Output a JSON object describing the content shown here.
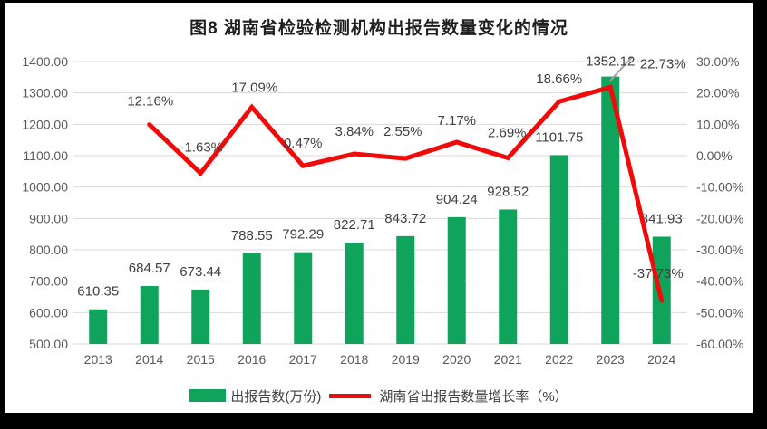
{
  "title": "图8  湖南省检验检测机构出报告数量变化的情况",
  "chart_data": {
    "type": "combo-bar-line",
    "title": "图8  湖南省检验检测机构出报告数量变化的情况",
    "categories": [
      "2013",
      "2014",
      "2015",
      "2016",
      "2017",
      "2018",
      "2019",
      "2020",
      "2021",
      "2022",
      "2023",
      "2024"
    ],
    "series": [
      {
        "name": "出报告数(万份)",
        "type": "bar",
        "axis": "left",
        "color": "#10A35C",
        "values": [
          610.35,
          684.57,
          673.44,
          788.55,
          792.29,
          822.71,
          843.72,
          904.24,
          928.52,
          1101.75,
          1352.12,
          841.93
        ],
        "labels": [
          "610.35",
          "684.57",
          "673.44",
          "788.55",
          "792.29",
          "822.71",
          "843.72",
          "904.24",
          "928.52",
          "1101.75",
          "1352.12",
          "841.93"
        ]
      },
      {
        "name": "湖南省出报告数量增长率（%）",
        "type": "line",
        "axis": "right",
        "color": "#F00A0A",
        "values": [
          null,
          12.16,
          -1.63,
          17.09,
          0.47,
          3.84,
          2.55,
          7.17,
          2.69,
          18.66,
          22.73,
          -37.73
        ],
        "labels": [
          null,
          "12.16%",
          "-1.63%",
          "17.09%",
          "0.47%",
          "3.84%",
          "2.55%",
          "7.17%",
          "2.69%",
          "18.66%",
          "22.73%",
          "-37.73%"
        ]
      }
    ],
    "left_axis": {
      "min": 500,
      "max": 1400,
      "step": 100,
      "decimals": 2,
      "suffix": "",
      "ticks": [
        "1400.00",
        "1300.00",
        "1200.00",
        "1100.00",
        "1000.00",
        "900.00",
        "800.00",
        "700.00",
        "600.00",
        "500.00"
      ]
    },
    "right_axis": {
      "min": -50,
      "max": 30,
      "step": 10,
      "decimals": 2,
      "suffix": "%",
      "ticks": [
        "30.00%",
        "20.00%",
        "10.00%",
        "0.00%",
        "-10.00%",
        "-20.00%",
        "-30.00%",
        "-40.00%",
        "-50.00%"
      ]
    },
    "grid": true,
    "legend_position": "bottom",
    "colors": {
      "grid": "#D9D9D9",
      "axis_text": "#595959",
      "data_label": "#404040",
      "leader_line": "#A0A0A0",
      "background": "#FFFFFF",
      "frame": "#000000"
    }
  }
}
